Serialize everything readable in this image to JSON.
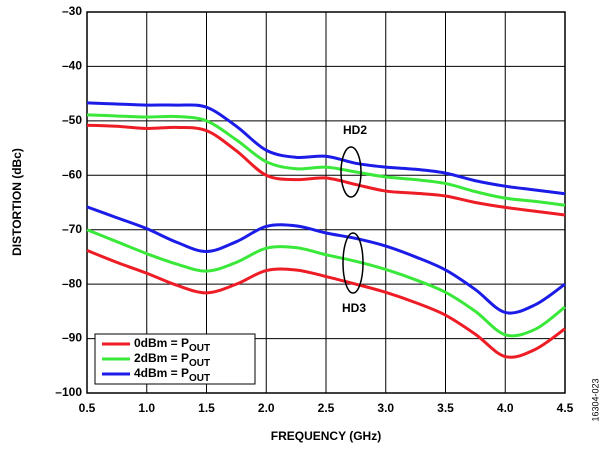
{
  "chart_data": {
    "type": "line",
    "xlabel": "FREQUENCY (GHz)",
    "ylabel": "DISTORTION (dBc)",
    "annotations": [
      "HD2",
      "HD3"
    ],
    "figure_id": "16304-023",
    "x": [
      0.5,
      0.75,
      1.0,
      1.25,
      1.5,
      1.75,
      2.0,
      2.25,
      2.5,
      2.75,
      3.0,
      3.25,
      3.5,
      3.75,
      4.0,
      4.25,
      4.5
    ],
    "xlim": [
      0.5,
      4.5
    ],
    "xticks": [
      0.5,
      {
        "value": 1,
        "label": "1.0"
      },
      1.5,
      {
        "value": 2,
        "label": "2.0"
      },
      2.5,
      {
        "value": 3,
        "label": "3.0"
      },
      3.5,
      {
        "value": 4,
        "label": "4.0"
      },
      4.5
    ],
    "ylim": [
      -100,
      -30
    ],
    "yticks": [
      {
        "value": -100,
        "label": "–100"
      },
      {
        "value": -90,
        "label": "–90"
      },
      {
        "value": -80,
        "label": "–80"
      },
      {
        "value": -70,
        "label": "–70"
      },
      {
        "value": -60,
        "label": "–60"
      },
      {
        "value": -50,
        "label": "–50"
      },
      {
        "value": -40,
        "label": "–40"
      },
      {
        "value": -30,
        "label": "–30"
      }
    ],
    "grid": true,
    "series": [
      {
        "name": "0dBm = P",
        "subscript": "OUT",
        "color": "#ee1c25",
        "HD2": [
          -50.8,
          -51,
          -51.4,
          -51.2,
          -51.8,
          -55.5,
          -60,
          -60.8,
          -60.5,
          -61.7,
          -62.9,
          -63.3,
          -63.8,
          -65,
          -65.9,
          -66.6,
          -67.3
        ],
        "HD3": [
          -73.8,
          -76,
          -78,
          -80.2,
          -81.6,
          -80,
          -77.5,
          -77.4,
          -78.6,
          -80,
          -81.5,
          -83.4,
          -85.7,
          -89.2,
          -93.3,
          -92,
          -88.2
        ]
      },
      {
        "name": "2dBm = P",
        "subscript": "OUT",
        "color": "#3ae83a",
        "HD2": [
          -48.9,
          -49.1,
          -49.3,
          -49.2,
          -50,
          -53.5,
          -57.5,
          -58.8,
          -58.5,
          -59.4,
          -60.3,
          -60.8,
          -61.5,
          -63,
          -64.2,
          -64.8,
          -65.5
        ],
        "HD3": [
          -70,
          -72.2,
          -74.4,
          -76.3,
          -77.6,
          -76,
          -73.4,
          -73.3,
          -74.6,
          -75.8,
          -77.3,
          -79.2,
          -81.5,
          -85,
          -89.3,
          -88.3,
          -84.2
        ]
      },
      {
        "name": "4dBm = P",
        "subscript": "OUT",
        "color": "#1c1ce8",
        "HD2": [
          -46.7,
          -46.9,
          -47.1,
          -47.1,
          -47.5,
          -51,
          -55.4,
          -56.7,
          -56.5,
          -57.8,
          -58.5,
          -58.9,
          -59.6,
          -61,
          -62,
          -62.7,
          -63.4
        ],
        "HD3": [
          -65.8,
          -67.8,
          -69.8,
          -72.3,
          -74,
          -72.2,
          -69.4,
          -69.3,
          -70.6,
          -71.6,
          -73,
          -75,
          -77.4,
          -81,
          -85.2,
          -83.8,
          -80
        ]
      }
    ]
  }
}
